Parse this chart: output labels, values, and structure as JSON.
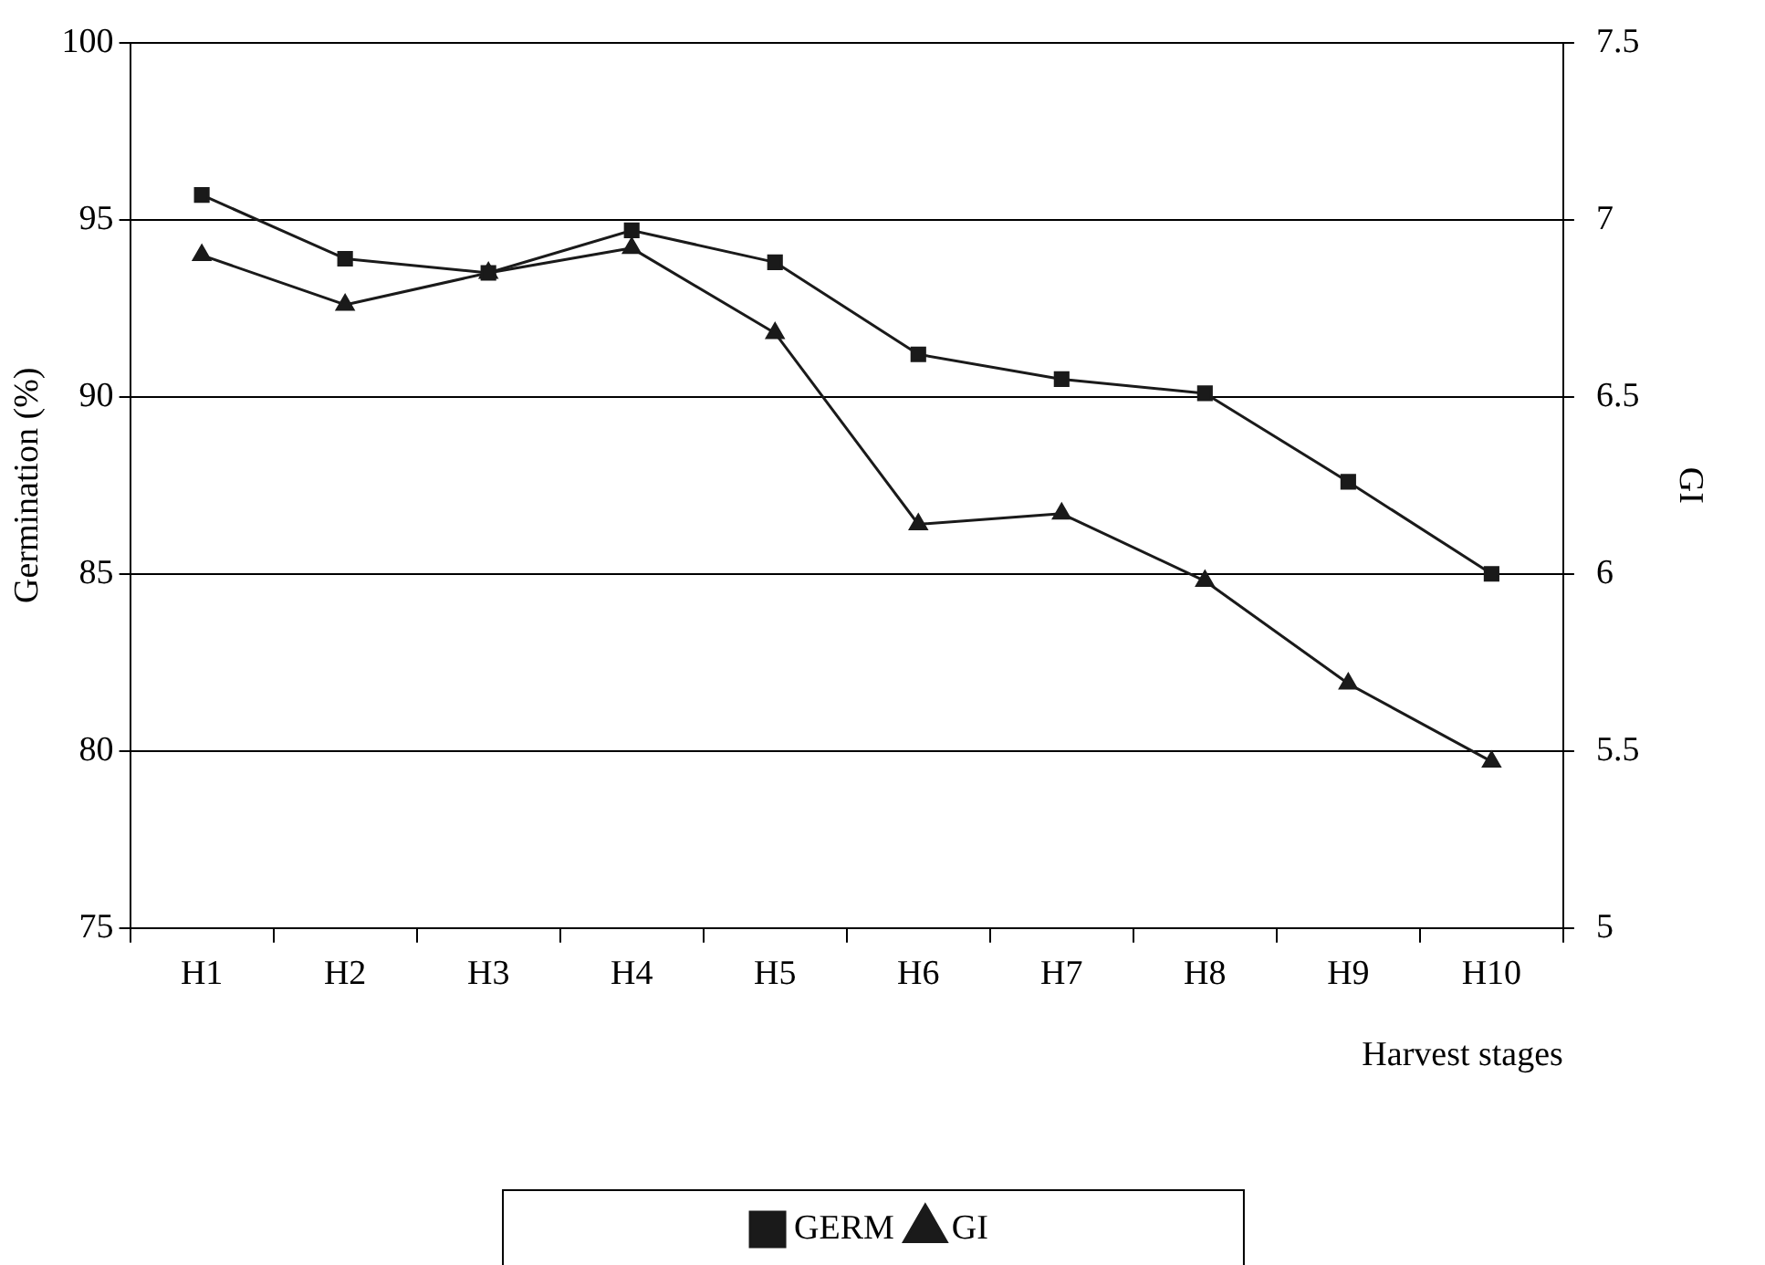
{
  "chart_data": {
    "type": "line",
    "xlabel": "Harvest stages",
    "ylabel": "Germination (%)",
    "y2label": "GI",
    "categories": [
      "H1",
      "H2",
      "H3",
      "H4",
      "H5",
      "H6",
      "H7",
      "H8",
      "H9",
      "H10"
    ],
    "series": [
      {
        "name": "GERM",
        "color": "#1a1a1a",
        "marker": "square",
        "values": [
          95.7,
          93.9,
          93.5,
          94.7,
          93.8,
          91.2,
          90.5,
          90.1,
          87.6,
          85.0
        ]
      },
      {
        "name": "GI",
        "color": "#1a1a1a",
        "marker": "triangle",
        "axis": "y2",
        "values": [
          6.9,
          6.76,
          6.85,
          6.92,
          6.68,
          6.14,
          6.17,
          5.98,
          5.69,
          5.47
        ]
      }
    ],
    "ylim": [
      75,
      100
    ],
    "yticks": [
      75,
      80,
      85,
      90,
      95,
      100
    ],
    "y2lim": [
      5,
      7.5
    ],
    "y2ticks": [
      5,
      5.5,
      6,
      6.5,
      7,
      7.5
    ],
    "grid": "y",
    "legend": "bottom",
    "line_style": "solid"
  }
}
